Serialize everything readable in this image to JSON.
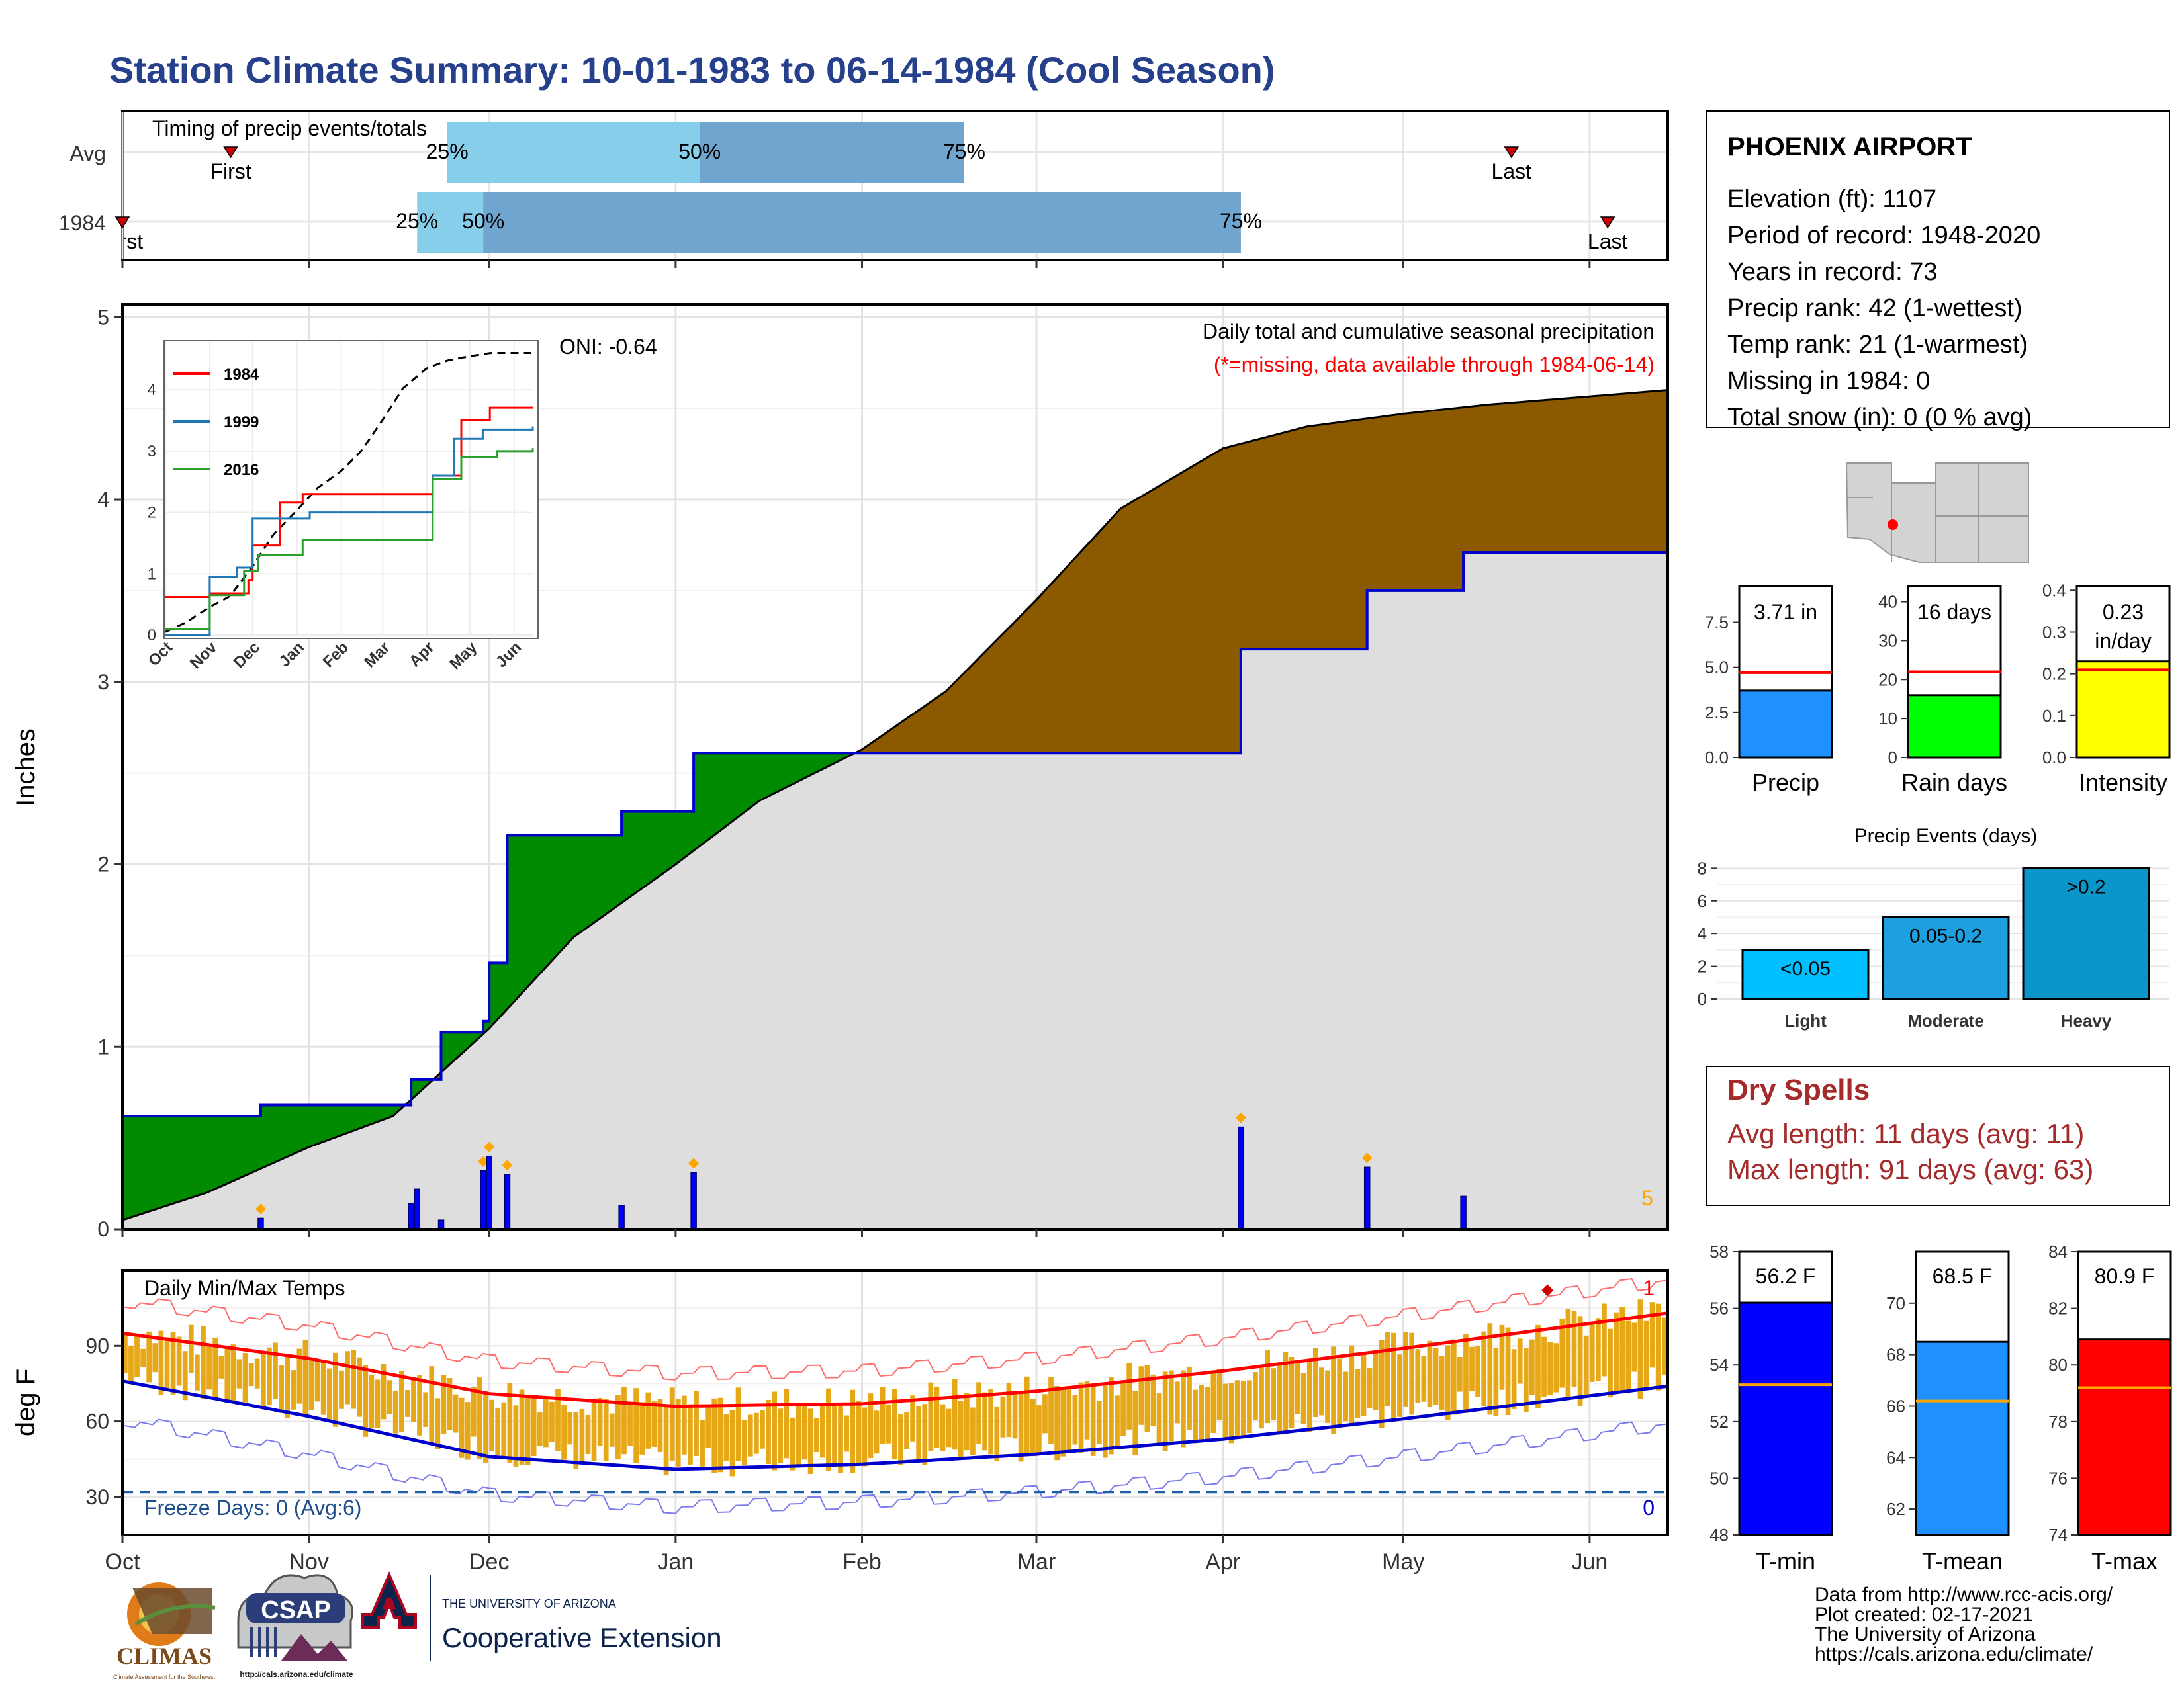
{
  "title": "Station Climate Summary: 10-01-1983 to 06-14-1984 (Cool Season)",
  "colors": {
    "title": "#27408B",
    "below_avg": "#8B5A00",
    "above_avg": "#008B00",
    "avg_fill": "#DEDEDE",
    "season_line": "#0000CD",
    "daily_bar": "#0000FF",
    "marker": "#FFA500",
    "missing_text": "#FF0000",
    "temp_bar": "#E6A817",
    "tmax_avg": "#FF0000",
    "tmin_avg": "#0000CD",
    "tmax_record": "#FF6B6B",
    "tmin_record": "#7A7AEE",
    "freeze_line": "#1F5FA8",
    "dry_spell": "#A52A2A",
    "light_blue": "#87CEEB",
    "steel_blue": "#6FA5CF"
  },
  "timing": {
    "label": "Timing of precip events/totals",
    "rows": [
      {
        "name": "Avg",
        "p25_label": "25%",
        "p50_label": "50%",
        "p75_label": "75%",
        "p25": "1983-11-24",
        "p50": "1984-01-05",
        "p75": "1984-02-18",
        "first": "1983-10-19",
        "first_label": "First",
        "last": "1984-05-19",
        "last_label": "Last"
      },
      {
        "name": "1984",
        "p25_label": "25%",
        "p50_label": "50%",
        "p75_label": "75%",
        "p25": "1983-11-19",
        "p50": "1983-11-30",
        "p75": "1984-04-04",
        "first": "1983-10-01",
        "first_label": "First",
        "last": "1984-06-04",
        "last_label": "Last"
      }
    ]
  },
  "main": {
    "ylabel": "Inches",
    "oni": "ONI: -0.64",
    "desc": "Daily total and cumulative seasonal precipitation",
    "missing_note": "(*=missing, data available through 1984-06-14)",
    "corner_count": "5"
  },
  "inset": {
    "series": [
      {
        "name": "1984",
        "color": "#FF0000"
      },
      {
        "name": "1999",
        "color": "#1F77B4"
      },
      {
        "name": "2016",
        "color": "#2CA02C"
      }
    ],
    "months": [
      "Oct",
      "Nov",
      "Dec",
      "Jan",
      "Feb",
      "Mar",
      "Apr",
      "May",
      "Jun"
    ]
  },
  "temps": {
    "ylabel": "deg F",
    "label": "Daily Min/Max Temps",
    "freeze": "Freeze Days: 0 (Avg:6)",
    "corner_top": "1",
    "corner_bottom": "0"
  },
  "months": [
    "Oct",
    "Nov",
    "Dec",
    "Jan",
    "Feb",
    "Mar",
    "Apr",
    "May",
    "Jun"
  ],
  "station": {
    "name": "PHOENIX AIRPORT",
    "lines": [
      "Elevation (ft): 1107",
      "Period of record: 1948-2020",
      "Years in record: 73",
      "Precip rank: 42 (1-wettest)",
      "Temp rank: 21 (1-warmest)",
      "Missing in 1984: 0",
      "Total snow (in): 0 (0 % avg)"
    ]
  },
  "summary_bars": [
    {
      "label": "Precip",
      "value_label": "3.71 in",
      "value": 3.71,
      "avg": 4.7,
      "ymax": 9.5,
      "ticks": [
        "0.0",
        "2.5",
        "5.0",
        "7.5"
      ],
      "tick_vals": [
        0,
        2.5,
        5,
        7.5
      ],
      "color": "#1E90FF"
    },
    {
      "label": "Rain days",
      "value_label": "16 days",
      "value": 16,
      "avg": 22,
      "ymax": 44,
      "ticks": [
        "0",
        "10",
        "20",
        "30",
        "40"
      ],
      "tick_vals": [
        0,
        10,
        20,
        30,
        40
      ],
      "color": "#00FF00"
    },
    {
      "label": "Intensity",
      "value_label": "0.23 in/day",
      "value": 0.23,
      "avg": 0.21,
      "ymax": 0.41,
      "ticks": [
        "0.0",
        "0.1",
        "0.2",
        "0.3",
        "0.4"
      ],
      "tick_vals": [
        0,
        0.1,
        0.2,
        0.3,
        0.4
      ],
      "color": "#FFFF00"
    }
  ],
  "events": {
    "title": "Precip Events (days)",
    "ticks": [
      "0",
      "2",
      "4",
      "6",
      "8"
    ],
    "bars": [
      {
        "label": "Light",
        "bin": "<0.05",
        "value": 3,
        "color": "#00BFFF"
      },
      {
        "label": "Moderate",
        "bin": "0.05-0.2",
        "value": 5,
        "color": "#1E9FE0"
      },
      {
        "label": "Heavy",
        "bin": ">0.2",
        "value": 8,
        "color": "#0A96C8"
      }
    ]
  },
  "dry_spells": {
    "title": "Dry Spells",
    "avg": "Avg length: 11 days (avg: 11)",
    "max": "Max length: 91 days (avg: 63)"
  },
  "temp_bars": [
    {
      "label": "T-min",
      "value_label": "56.2 F",
      "value": 56.2,
      "avg": 53.3,
      "ymin": 48,
      "ymax": 58,
      "ticks": [
        "48",
        "50",
        "52",
        "54",
        "56",
        "58"
      ],
      "tick_vals": [
        48,
        50,
        52,
        54,
        56,
        58
      ],
      "color": "#0000FF"
    },
    {
      "label": "T-mean",
      "value_label": "68.5 F",
      "value": 68.5,
      "avg": 66.2,
      "ymin": 61,
      "ymax": 72,
      "ticks": [
        "62",
        "64",
        "66",
        "68",
        "70"
      ],
      "tick_vals": [
        62,
        64,
        66,
        68,
        70
      ],
      "color": "#1E90FF"
    },
    {
      "label": "T-max",
      "value_label": "80.9 F",
      "value": 80.9,
      "avg": 79.2,
      "ymin": 74,
      "ymax": 84,
      "ticks": [
        "74",
        "76",
        "78",
        "80",
        "82",
        "84"
      ],
      "tick_vals": [
        74,
        76,
        78,
        80,
        82,
        84
      ],
      "color": "#FF0000"
    }
  ],
  "credits": [
    "Data from http://www.rcc-acis.org/",
    "Plot created: 02-17-2021",
    "The University of Arizona",
    "https://cals.arizona.edu/climate/"
  ],
  "logos": {
    "climas": "CLIMAS",
    "climas_sub": "Climate Assessment for the Southwest",
    "csap": "CSAP",
    "csap_url": "http://cals.arizona.edu/climate",
    "ua_small": "THE UNIVERSITY OF ARIZONA",
    "ua_big": "Cooperative Extension"
  },
  "chart_data": {
    "type": "area",
    "title": "Daily total and cumulative seasonal precipitation",
    "ylabel": "Inches",
    "ylim": [
      0,
      5
    ],
    "x_range": [
      "1983-10-01",
      "1984-06-14"
    ],
    "series": [
      {
        "name": "1984 cumulative",
        "x": [
          "1983-10-01",
          "1983-10-24",
          "1983-11-18",
          "1983-11-23",
          "1983-11-30",
          "1983-12-01",
          "1983-12-04",
          "1983-12-23",
          "1984-01-04",
          "1984-04-04",
          "1984-04-25",
          "1984-05-11"
        ],
        "y": [
          0.62,
          0.68,
          0.82,
          1.08,
          1.14,
          1.46,
          2.16,
          2.29,
          2.61,
          3.18,
          3.5,
          3.71
        ]
      },
      {
        "name": "Average cumulative",
        "x": [
          "1983-10-01",
          "1983-10-15",
          "1983-11-01",
          "1983-11-15",
          "1983-12-01",
          "1983-12-15",
          "1984-01-01",
          "1984-01-15",
          "1984-02-01",
          "1984-02-15",
          "1984-03-01",
          "1984-03-15",
          "1984-04-01",
          "1984-04-15",
          "1984-05-01",
          "1984-05-15",
          "1984-06-14"
        ],
        "y": [
          0.05,
          0.2,
          0.45,
          0.62,
          1.1,
          1.6,
          2.0,
          2.35,
          2.63,
          2.95,
          3.45,
          3.95,
          4.28,
          4.4,
          4.47,
          4.52,
          4.6
        ]
      },
      {
        "name": "1984 daily",
        "x": [
          "1983-10-24",
          "1983-11-18",
          "1983-11-19",
          "1983-11-23",
          "1983-11-30",
          "1983-12-01",
          "1983-12-04",
          "1983-12-23",
          "1984-01-04",
          "1984-04-04",
          "1984-04-25",
          "1984-05-11"
        ],
        "y": [
          0.06,
          0.14,
          0.22,
          0.05,
          0.32,
          0.4,
          0.3,
          0.13,
          0.31,
          0.56,
          0.34,
          0.18
        ]
      }
    ],
    "inset": {
      "type": "line",
      "ylim": [
        0,
        4.8
      ],
      "series": [
        {
          "name": "1984",
          "x": [
            "1983-10-01",
            "1983-11-01",
            "1983-11-28",
            "1983-12-01",
            "1983-12-20",
            "1984-01-05",
            "1984-04-05",
            "1984-04-25",
            "1984-05-15",
            "1984-06-14"
          ],
          "y": [
            0.62,
            0.68,
            0.9,
            1.46,
            2.16,
            2.3,
            2.6,
            3.5,
            3.71,
            3.71
          ]
        },
        {
          "name": "1999",
          "x": [
            "1983-10-01",
            "1983-11-01",
            "1983-11-20",
            "1983-12-01",
            "1984-01-10",
            "1984-04-05",
            "1984-04-20",
            "1984-05-10",
            "1984-06-14"
          ],
          "y": [
            0.0,
            0.95,
            1.1,
            1.9,
            2.0,
            2.6,
            3.2,
            3.35,
            3.4
          ]
        },
        {
          "name": "2016",
          "x": [
            "1983-10-01",
            "1983-11-01",
            "1983-11-25",
            "1983-12-05",
            "1984-01-05",
            "1984-04-05",
            "1984-04-25",
            "1984-05-20",
            "1984-06-14"
          ],
          "y": [
            0.1,
            0.65,
            1.05,
            1.3,
            1.55,
            2.55,
            2.9,
            3.0,
            3.05
          ]
        }
      ]
    },
    "temps": {
      "type": "bar",
      "ylim": [
        15,
        120
      ],
      "yticks": [
        30,
        60,
        90
      ],
      "freeze_line": 32,
      "tmax_avg": {
        "x": [
          "1983-10-01",
          "1983-11-01",
          "1983-12-01",
          "1984-01-01",
          "1984-02-01",
          "1984-03-01",
          "1984-04-01",
          "1984-05-01",
          "1984-06-14"
        ],
        "y": [
          95,
          85,
          71,
          66,
          67,
          72,
          80,
          89,
          103
        ]
      },
      "tmin_avg": {
        "x": [
          "1983-10-01",
          "1983-11-01",
          "1983-12-01",
          "1984-01-01",
          "1984-02-01",
          "1984-03-01",
          "1984-04-01",
          "1984-05-01",
          "1984-06-14"
        ],
        "y": [
          76,
          62,
          46,
          41,
          43,
          47,
          53,
          61,
          74
        ]
      }
    }
  }
}
